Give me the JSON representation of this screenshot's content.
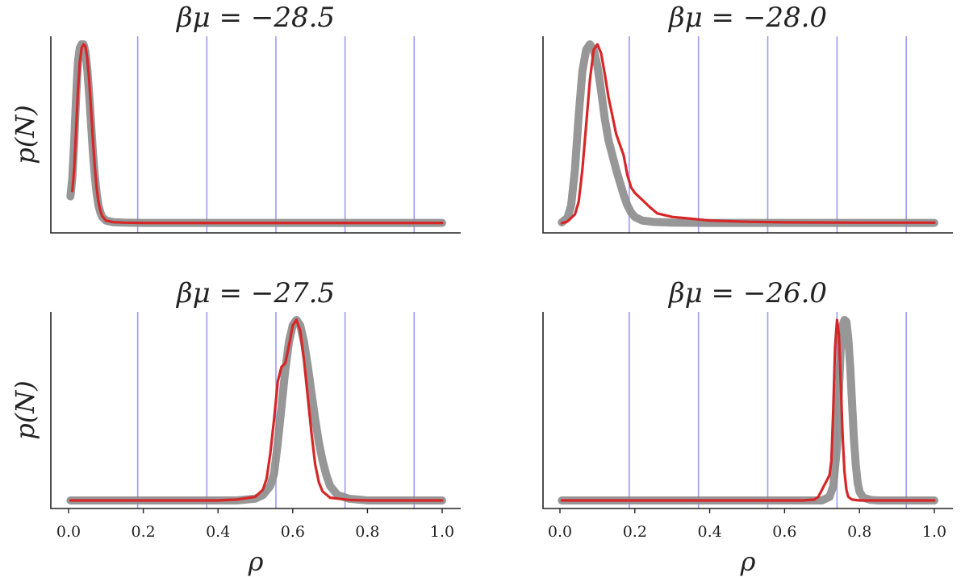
{
  "chart_data": [
    {
      "type": "line",
      "title": "βμ = −28.5",
      "ylabel": "p(N)",
      "xlabel": "",
      "xlim": [
        0.0,
        1.0
      ],
      "y_ticks_shown": false,
      "vlines": [
        0.185,
        0.37,
        0.555,
        0.74,
        0.925
      ],
      "series": [
        {
          "color": "#8c8c8c",
          "x": [
            0.005,
            0.01,
            0.015,
            0.02,
            0.025,
            0.03,
            0.035,
            0.04,
            0.045,
            0.05,
            0.055,
            0.06,
            0.065,
            0.07,
            0.075,
            0.08,
            0.085,
            0.09,
            0.1,
            0.12,
            0.15,
            0.2,
            0.3,
            0.4,
            0.5,
            0.6,
            0.7,
            0.8,
            0.9,
            1.0
          ],
          "y": [
            0.15,
            0.25,
            0.45,
            0.7,
            0.9,
            0.98,
            1.0,
            1.0,
            0.96,
            0.86,
            0.72,
            0.56,
            0.4,
            0.27,
            0.17,
            0.1,
            0.06,
            0.035,
            0.015,
            0.006,
            0.003,
            0.002,
            0.002,
            0.002,
            0.002,
            0.002,
            0.002,
            0.002,
            0.002,
            0.002
          ]
        },
        {
          "color": "#d62728",
          "x": [
            0.01,
            0.015,
            0.02,
            0.025,
            0.03,
            0.035,
            0.04,
            0.045,
            0.05,
            0.055,
            0.06,
            0.065,
            0.07,
            0.075,
            0.08,
            0.085,
            0.09,
            0.1,
            0.12,
            0.15,
            0.2,
            0.3,
            0.4,
            0.5,
            0.6,
            0.7,
            0.8,
            0.9,
            1.0
          ],
          "y": [
            0.18,
            0.3,
            0.52,
            0.74,
            0.9,
            0.98,
            1.0,
            0.99,
            0.92,
            0.8,
            0.64,
            0.47,
            0.32,
            0.2,
            0.12,
            0.07,
            0.04,
            0.015,
            0.006,
            0.003,
            0.002,
            0.002,
            0.002,
            0.002,
            0.002,
            0.002,
            0.002,
            0.002,
            0.002
          ]
        }
      ]
    },
    {
      "type": "line",
      "title": "βμ = −28.0",
      "ylabel": "",
      "xlabel": "",
      "xlim": [
        0.0,
        1.0
      ],
      "y_ticks_shown": false,
      "vlines": [
        0.185,
        0.37,
        0.555,
        0.74,
        0.925
      ],
      "series": [
        {
          "color": "#8c8c8c",
          "x": [
            0.005,
            0.02,
            0.03,
            0.04,
            0.05,
            0.06,
            0.07,
            0.08,
            0.09,
            0.1,
            0.11,
            0.12,
            0.13,
            0.14,
            0.15,
            0.16,
            0.17,
            0.18,
            0.19,
            0.2,
            0.22,
            0.25,
            0.3,
            0.4,
            0.5,
            0.6,
            0.7,
            0.8,
            0.9,
            1.0
          ],
          "y": [
            0.005,
            0.03,
            0.1,
            0.3,
            0.6,
            0.85,
            0.97,
            1.0,
            0.97,
            0.88,
            0.74,
            0.58,
            0.46,
            0.38,
            0.3,
            0.23,
            0.16,
            0.1,
            0.06,
            0.035,
            0.015,
            0.007,
            0.003,
            0.002,
            0.002,
            0.002,
            0.002,
            0.002,
            0.002,
            0.002
          ]
        },
        {
          "color": "#d62728",
          "x": [
            0.005,
            0.02,
            0.04,
            0.05,
            0.06,
            0.07,
            0.08,
            0.09,
            0.1,
            0.11,
            0.12,
            0.13,
            0.14,
            0.15,
            0.16,
            0.17,
            0.18,
            0.19,
            0.2,
            0.22,
            0.24,
            0.26,
            0.3,
            0.35,
            0.4,
            0.5,
            0.6,
            0.7,
            0.8,
            0.9,
            1.0
          ],
          "y": [
            0.0,
            0.01,
            0.05,
            0.12,
            0.3,
            0.55,
            0.8,
            0.97,
            1.0,
            0.95,
            0.83,
            0.7,
            0.6,
            0.5,
            0.44,
            0.38,
            0.27,
            0.2,
            0.17,
            0.13,
            0.09,
            0.055,
            0.035,
            0.025,
            0.015,
            0.008,
            0.005,
            0.004,
            0.003,
            0.003,
            0.003
          ]
        }
      ]
    },
    {
      "type": "line",
      "title": "βμ = −27.5",
      "ylabel": "p(N)",
      "xlabel": "ρ",
      "xlim": [
        0.0,
        1.0
      ],
      "xticks": [
        "0.0",
        "0.2",
        "0.4",
        "0.6",
        "0.8",
        "1.0"
      ],
      "y_ticks_shown": false,
      "vlines": [
        0.185,
        0.37,
        0.555,
        0.74,
        0.925
      ],
      "series": [
        {
          "color": "#8c8c8c",
          "x": [
            0.005,
            0.1,
            0.2,
            0.3,
            0.4,
            0.45,
            0.5,
            0.52,
            0.54,
            0.55,
            0.56,
            0.57,
            0.58,
            0.59,
            0.6,
            0.61,
            0.62,
            0.63,
            0.64,
            0.65,
            0.66,
            0.67,
            0.68,
            0.69,
            0.7,
            0.72,
            0.75,
            0.8,
            0.9,
            1.0
          ],
          "y": [
            0.0,
            0.0,
            0.0,
            0.0,
            0.0,
            0.0,
            0.01,
            0.03,
            0.08,
            0.15,
            0.32,
            0.52,
            0.72,
            0.88,
            0.97,
            1.0,
            0.97,
            0.88,
            0.75,
            0.6,
            0.45,
            0.32,
            0.22,
            0.14,
            0.08,
            0.03,
            0.01,
            0.0,
            0.0,
            0.0
          ]
        },
        {
          "color": "#d62728",
          "x": [
            0.005,
            0.1,
            0.2,
            0.3,
            0.4,
            0.45,
            0.5,
            0.52,
            0.53,
            0.54,
            0.55,
            0.56,
            0.57,
            0.58,
            0.59,
            0.6,
            0.61,
            0.62,
            0.63,
            0.64,
            0.65,
            0.66,
            0.67,
            0.68,
            0.7,
            0.75,
            0.8,
            0.9,
            1.0
          ],
          "y": [
            0.0,
            0.0,
            0.0,
            0.0,
            0.0,
            0.005,
            0.02,
            0.06,
            0.12,
            0.26,
            0.45,
            0.66,
            0.74,
            0.76,
            0.86,
            0.97,
            1.0,
            0.94,
            0.78,
            0.58,
            0.38,
            0.2,
            0.1,
            0.05,
            0.015,
            0.003,
            0.0,
            0.0,
            0.0
          ]
        }
      ]
    },
    {
      "type": "line",
      "title": "βμ = −26.0",
      "ylabel": "",
      "xlabel": "ρ",
      "xlim": [
        0.0,
        1.0
      ],
      "xticks": [
        "0.0",
        "0.2",
        "0.4",
        "0.6",
        "0.8",
        "1.0"
      ],
      "y_ticks_shown": false,
      "vlines": [
        0.185,
        0.37,
        0.555,
        0.74,
        0.925
      ],
      "series": [
        {
          "color": "#8c8c8c",
          "x": [
            0.005,
            0.1,
            0.2,
            0.3,
            0.4,
            0.5,
            0.6,
            0.65,
            0.7,
            0.72,
            0.73,
            0.74,
            0.745,
            0.75,
            0.755,
            0.76,
            0.765,
            0.77,
            0.775,
            0.78,
            0.785,
            0.79,
            0.795,
            0.8,
            0.81,
            0.83,
            0.85,
            0.9,
            1.0
          ],
          "y": [
            0.0,
            0.0,
            0.0,
            0.0,
            0.0,
            0.0,
            0.0,
            0.0,
            0.0,
            0.02,
            0.08,
            0.3,
            0.6,
            0.85,
            0.97,
            1.0,
            0.99,
            0.9,
            0.75,
            0.55,
            0.35,
            0.2,
            0.1,
            0.05,
            0.015,
            0.003,
            0.0,
            0.0,
            0.0
          ]
        },
        {
          "color": "#d62728",
          "x": [
            0.005,
            0.1,
            0.2,
            0.3,
            0.4,
            0.5,
            0.6,
            0.65,
            0.68,
            0.69,
            0.7,
            0.71,
            0.72,
            0.725,
            0.73,
            0.735,
            0.74,
            0.745,
            0.75,
            0.755,
            0.76,
            0.765,
            0.77,
            0.78,
            0.8,
            0.85,
            0.9,
            1.0
          ],
          "y": [
            0.0,
            0.0,
            0.0,
            0.0,
            0.0,
            0.0,
            0.0,
            0.0,
            0.005,
            0.02,
            0.06,
            0.1,
            0.14,
            0.22,
            0.5,
            0.85,
            1.0,
            0.92,
            0.65,
            0.36,
            0.16,
            0.06,
            0.02,
            0.005,
            0.0,
            0.0,
            0.0,
            0.0
          ]
        }
      ]
    }
  ]
}
